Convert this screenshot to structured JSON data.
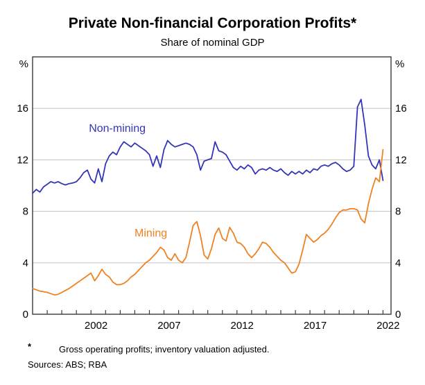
{
  "header": {
    "title": "Private Non-financial Corporation Profits*",
    "subtitle": "Share of nominal GDP"
  },
  "footnotes": {
    "marker": "*",
    "note": "Gross operating profits; inventory valuation adjusted.",
    "sources": "Sources: ABS; RBA"
  },
  "chart_data": {
    "type": "line",
    "title": "Private Non-financial Corporation Profits*",
    "subtitle": "Share of nominal GDP",
    "x_axis": {
      "range": [
        1998.0,
        2022.55
      ],
      "minor_tick_interval": 1,
      "tick_labels": [
        2002,
        2007,
        2012,
        2017,
        2022
      ]
    },
    "y_axis": {
      "range": [
        0,
        20
      ],
      "unit": "%",
      "gridlines": [
        4,
        8,
        12,
        16
      ],
      "tick_labels": [
        0,
        4,
        8,
        12,
        16
      ],
      "labels_both_sides": true
    },
    "grid_color": "#c8c8c8",
    "frame_color": "#3a3a3a",
    "series": [
      {
        "name": "Non-mining",
        "color": "#3434b8",
        "label_pos": {
          "x": 2003.8,
          "y": 14.45
        },
        "x_start": 1998.0,
        "x_step": 0.25,
        "values": [
          9.4,
          9.7,
          9.5,
          9.9,
          10.1,
          10.3,
          10.2,
          10.3,
          10.15,
          10.05,
          10.15,
          10.2,
          10.3,
          10.6,
          11.0,
          11.2,
          10.5,
          10.2,
          11.3,
          10.3,
          11.7,
          12.3,
          12.6,
          12.4,
          13.0,
          13.4,
          13.2,
          13.0,
          13.3,
          13.1,
          12.9,
          12.7,
          12.4,
          11.5,
          12.3,
          11.4,
          12.8,
          13.5,
          13.2,
          13.0,
          13.1,
          13.2,
          13.3,
          13.2,
          13.0,
          12.4,
          11.2,
          11.9,
          12.0,
          12.1,
          13.4,
          12.7,
          12.6,
          12.4,
          11.9,
          11.4,
          11.2,
          11.5,
          11.3,
          11.6,
          11.4,
          10.9,
          11.2,
          11.3,
          11.2,
          11.4,
          11.2,
          11.1,
          11.3,
          11.0,
          10.8,
          11.1,
          10.9,
          11.1,
          10.9,
          11.2,
          11.0,
          11.3,
          11.2,
          11.5,
          11.6,
          11.5,
          11.7,
          11.8,
          11.6,
          11.3,
          11.1,
          11.2,
          11.5,
          16.1,
          16.7,
          14.7,
          12.3,
          11.6,
          11.3,
          12.0,
          10.4
        ]
      },
      {
        "name": "Mining",
        "color": "#ef8220",
        "label_pos": {
          "x": 2006.1,
          "y": 6.3
        },
        "x_start": 1998.0,
        "x_step": 0.25,
        "values": [
          2.0,
          1.9,
          1.8,
          1.75,
          1.7,
          1.6,
          1.5,
          1.55,
          1.7,
          1.85,
          2.0,
          2.2,
          2.4,
          2.6,
          2.8,
          3.0,
          3.2,
          2.6,
          3.0,
          3.5,
          3.1,
          2.9,
          2.5,
          2.3,
          2.3,
          2.4,
          2.6,
          2.9,
          3.1,
          3.4,
          3.7,
          4.0,
          4.2,
          4.5,
          4.8,
          5.2,
          5.0,
          4.4,
          4.2,
          4.7,
          4.2,
          4.0,
          4.4,
          5.6,
          6.9,
          7.2,
          6.1,
          4.6,
          4.3,
          5.1,
          6.2,
          6.7,
          5.9,
          5.7,
          6.75,
          6.3,
          5.6,
          5.5,
          5.2,
          4.7,
          4.4,
          4.7,
          5.1,
          5.6,
          5.5,
          5.2,
          4.8,
          4.5,
          4.2,
          4.0,
          3.6,
          3.2,
          3.3,
          3.9,
          5.0,
          6.2,
          5.9,
          5.6,
          5.8,
          6.1,
          6.3,
          6.6,
          7.0,
          7.5,
          7.9,
          8.1,
          8.1,
          8.2,
          8.2,
          8.1,
          7.4,
          7.1,
          8.6,
          9.7,
          10.6,
          10.3,
          12.8
        ]
      }
    ]
  }
}
